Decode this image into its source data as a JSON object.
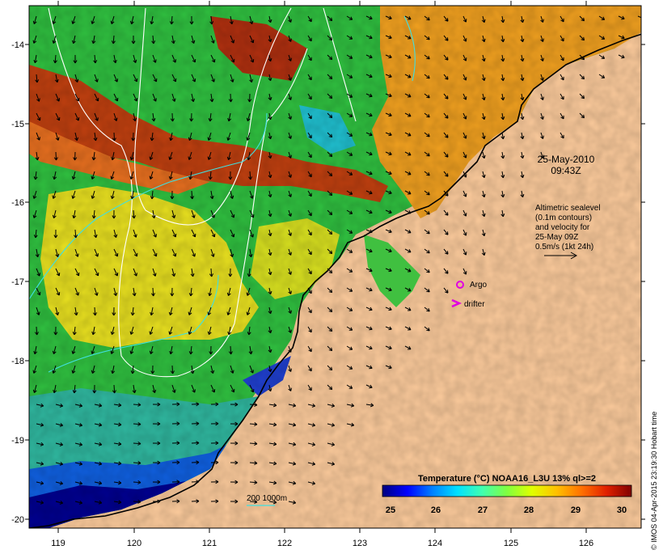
{
  "map": {
    "x_ticks": [
      "119",
      "120",
      "121",
      "122",
      "123",
      "124",
      "125",
      "126"
    ],
    "y_ticks": [
      "-14",
      "-15",
      "-16",
      "-17",
      "-18",
      "-19",
      "-20"
    ],
    "lon_range": [
      118.6,
      126.7
    ],
    "lat_range": [
      -13.6,
      -20.1
    ]
  },
  "annotations": {
    "date_line1": "25-May-2010",
    "date_line2": "09:43Z",
    "altimetry_lines": [
      "Altimetric sealevel",
      "(0.1m contours)",
      "and velocity for",
      "25-May 09Z",
      "0.5m/s (1kt 24h)"
    ],
    "argo_label": "Argo",
    "drifter_label": "drifter",
    "bathymetry_label": "200  1000m"
  },
  "colorbar": {
    "title": "Temperature (°C) NOAA16_L3U 13% ql>=2",
    "ticks": [
      "25",
      "26",
      "27",
      "28",
      "29",
      "30"
    ],
    "colors": [
      "#00007f",
      "#0000ff",
      "#0080ff",
      "#00e0ff",
      "#40ffb0",
      "#80ff40",
      "#e0ff00",
      "#ffc000",
      "#ff7000",
      "#e02000",
      "#800000"
    ]
  },
  "credit": "© IMOS 04-Apr-2015 23:19:30 Hobart time",
  "colors": {
    "land": "#fccb9c",
    "argo": "#e000e0",
    "drifter": "#e000e0",
    "contour_white": "#ffffff",
    "contour_cyan": "#40e0e0"
  }
}
